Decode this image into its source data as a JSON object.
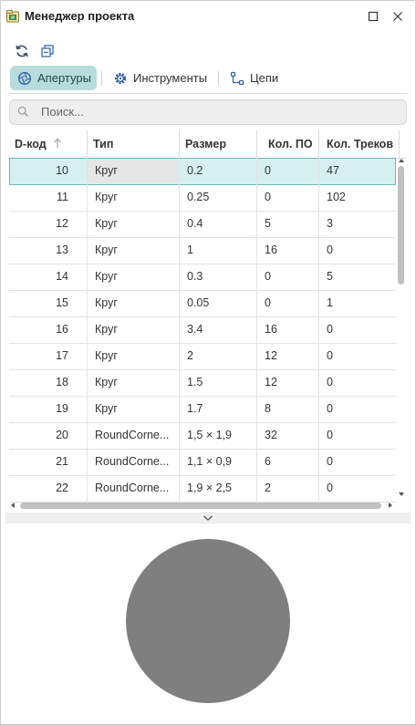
{
  "window": {
    "title": "Менеджер проекта"
  },
  "tabs": [
    {
      "label": "Апертуры",
      "icon": "aperture-icon",
      "active": true
    },
    {
      "label": "Инструменты",
      "icon": "gear-icon",
      "active": false
    },
    {
      "label": "Цепи",
      "icon": "nets-icon",
      "active": false
    }
  ],
  "search": {
    "placeholder": "Поиск..."
  },
  "table": {
    "columns": [
      "D-код",
      "Тип",
      "Размер",
      "Кол. ПО",
      "Кол. Треков"
    ],
    "sort": {
      "column": "D-код",
      "direction": "ascending"
    },
    "rows": [
      {
        "dcode": "10",
        "type": "Круг",
        "size": "0.2",
        "po": "0",
        "tracks": "47",
        "selected": true
      },
      {
        "dcode": "11",
        "type": "Круг",
        "size": "0.25",
        "po": "0",
        "tracks": "102"
      },
      {
        "dcode": "12",
        "type": "Круг",
        "size": "0.4",
        "po": "5",
        "tracks": "3"
      },
      {
        "dcode": "13",
        "type": "Круг",
        "size": "1",
        "po": "16",
        "tracks": "0"
      },
      {
        "dcode": "14",
        "type": "Круг",
        "size": "0.3",
        "po": "0",
        "tracks": "5"
      },
      {
        "dcode": "15",
        "type": "Круг",
        "size": "0.05",
        "po": "0",
        "tracks": "1"
      },
      {
        "dcode": "16",
        "type": "Круг",
        "size": "3.4",
        "po": "16",
        "tracks": "0"
      },
      {
        "dcode": "17",
        "type": "Круг",
        "size": "2",
        "po": "12",
        "tracks": "0"
      },
      {
        "dcode": "18",
        "type": "Круг",
        "size": "1.5",
        "po": "12",
        "tracks": "0"
      },
      {
        "dcode": "19",
        "type": "Круг",
        "size": "1.7",
        "po": "8",
        "tracks": "0"
      },
      {
        "dcode": "20",
        "type": "RoundCorne...",
        "size": "1,5 × 1,9",
        "po": "32",
        "tracks": "0"
      },
      {
        "dcode": "21",
        "type": "RoundCorne...",
        "size": "1,1 × 0,9",
        "po": "6",
        "tracks": "0"
      },
      {
        "dcode": "22",
        "type": "RoundCorne...",
        "size": "1,9 × 2,5",
        "po": "2",
        "tracks": "0"
      }
    ]
  },
  "preview": {
    "shape": "circle",
    "fill": "#7f7f7f"
  },
  "colors": {
    "accent": "#b7dcdc",
    "selection": "#d6f0f0",
    "selection_border": "#6bb8b8"
  }
}
